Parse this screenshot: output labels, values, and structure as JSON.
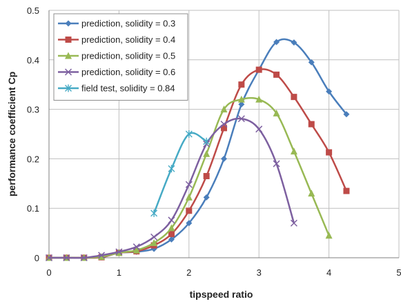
{
  "chart_data": {
    "type": "line",
    "title": "",
    "xlabel": "tipspeed ratio",
    "ylabel": "performance coefficient Cp",
    "xlim": [
      0,
      5
    ],
    "ylim": [
      0,
      0.5
    ],
    "x_ticks": [
      "0",
      "1",
      "2",
      "3",
      "4",
      "5"
    ],
    "y_ticks": [
      "0",
      "0.1",
      "0.2",
      "0.3",
      "0.4",
      "0.5"
    ],
    "grid": true,
    "legend_position": "top-left",
    "series": [
      {
        "name": "prediction, solidity = 0.3",
        "color": "#4a7ebb",
        "marker": "diamond",
        "points": [
          [
            0,
            0
          ],
          [
            0.25,
            0
          ],
          [
            0.5,
            0
          ],
          [
            0.75,
            0.001
          ],
          [
            1,
            0.01
          ],
          [
            1.25,
            0.012
          ],
          [
            1.5,
            0.018
          ],
          [
            1.75,
            0.037
          ],
          [
            2,
            0.07
          ],
          [
            2.25,
            0.122
          ],
          [
            2.5,
            0.2
          ],
          [
            2.75,
            0.31
          ],
          [
            3,
            0.38
          ],
          [
            3.25,
            0.436
          ],
          [
            3.5,
            0.435
          ],
          [
            3.75,
            0.395
          ],
          [
            4,
            0.336
          ],
          [
            4.25,
            0.29
          ]
        ]
      },
      {
        "name": "prediction, solidity = 0.4",
        "color": "#be4b48",
        "marker": "square",
        "points": [
          [
            0,
            0
          ],
          [
            0.25,
            0
          ],
          [
            0.5,
            0
          ],
          [
            0.75,
            0.001
          ],
          [
            1,
            0.01
          ],
          [
            1.25,
            0.013
          ],
          [
            1.5,
            0.025
          ],
          [
            1.75,
            0.048
          ],
          [
            2,
            0.095
          ],
          [
            2.25,
            0.165
          ],
          [
            2.5,
            0.262
          ],
          [
            2.75,
            0.35
          ],
          [
            3,
            0.38
          ],
          [
            3.25,
            0.37
          ],
          [
            3.5,
            0.325
          ],
          [
            3.75,
            0.27
          ],
          [
            4,
            0.213
          ],
          [
            4.25,
            0.135
          ]
        ]
      },
      {
        "name": "prediction, solidity = 0.5",
        "color": "#98b954",
        "marker": "triangle",
        "points": [
          [
            0,
            0
          ],
          [
            0.25,
            0
          ],
          [
            0.5,
            0
          ],
          [
            0.75,
            0.002
          ],
          [
            1,
            0.01
          ],
          [
            1.25,
            0.015
          ],
          [
            1.5,
            0.03
          ],
          [
            1.75,
            0.06
          ],
          [
            2,
            0.122
          ],
          [
            2.25,
            0.21
          ],
          [
            2.5,
            0.3
          ],
          [
            2.75,
            0.32
          ],
          [
            3,
            0.32
          ],
          [
            3.25,
            0.292
          ],
          [
            3.5,
            0.215
          ],
          [
            3.75,
            0.13
          ],
          [
            4,
            0.045
          ]
        ]
      },
      {
        "name": "prediction, solidity = 0.6",
        "color": "#7d60a0",
        "marker": "x",
        "points": [
          [
            0,
            0
          ],
          [
            0.25,
            0
          ],
          [
            0.5,
            0
          ],
          [
            0.75,
            0.005
          ],
          [
            1,
            0.012
          ],
          [
            1.25,
            0.022
          ],
          [
            1.5,
            0.042
          ],
          [
            1.75,
            0.076
          ],
          [
            2,
            0.148
          ],
          [
            2.25,
            0.23
          ],
          [
            2.5,
            0.27
          ],
          [
            2.75,
            0.281
          ],
          [
            3,
            0.26
          ],
          [
            3.25,
            0.19
          ],
          [
            3.5,
            0.07
          ]
        ]
      },
      {
        "name": "field test, solidity = 0.84",
        "color": "#46aac5",
        "marker": "star",
        "points": [
          [
            1.5,
            0.09
          ],
          [
            1.75,
            0.18
          ],
          [
            2,
            0.25
          ],
          [
            2.25,
            0.235
          ]
        ]
      }
    ]
  }
}
